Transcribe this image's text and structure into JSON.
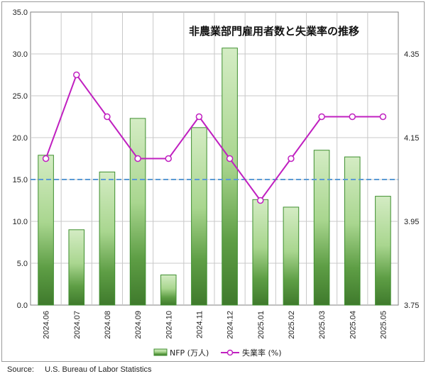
{
  "chart_data": {
    "type": "bar",
    "title": "非農業部門雇用者数と失業率の推移",
    "categories": [
      "2024.06",
      "2024.07",
      "2024.08",
      "2024.09",
      "2024.10",
      "2024.11",
      "2024.12",
      "2025.01",
      "2025.02",
      "2025.03",
      "2025.04",
      "2025.05"
    ],
    "series": [
      {
        "name": "NFP (万人)",
        "type": "bar",
        "axis": "left",
        "values": [
          17.9,
          9.0,
          15.9,
          22.3,
          3.6,
          21.2,
          30.7,
          12.6,
          11.7,
          18.5,
          17.7,
          13.0
        ],
        "color": "#4a9a3a"
      },
      {
        "name": "失業率 (%)",
        "type": "line",
        "axis": "right",
        "values": [
          4.1,
          4.3,
          4.2,
          4.1,
          4.1,
          4.2,
          4.1,
          4.0,
          4.1,
          4.2,
          4.2,
          4.2
        ],
        "color": "#c020c0"
      }
    ],
    "reference_line": {
      "value": 15.0,
      "axis": "left",
      "style": "dashed",
      "color": "#5b9bd5"
    },
    "left_axis": {
      "ylim": [
        0,
        35
      ],
      "ticks": [
        "0.0",
        "5.0",
        "10.0",
        "15.0",
        "20.0",
        "25.0",
        "30.0",
        "35.0"
      ]
    },
    "right_axis": {
      "ylim": [
        3.75,
        4.45
      ],
      "ticks": [
        "3.75",
        "3.95",
        "4.15",
        "4.35"
      ]
    },
    "grid": true,
    "legend_position": "bottom"
  },
  "source": {
    "label": "Source:",
    "text": "U.S. Bureau of Labor Statistics"
  }
}
